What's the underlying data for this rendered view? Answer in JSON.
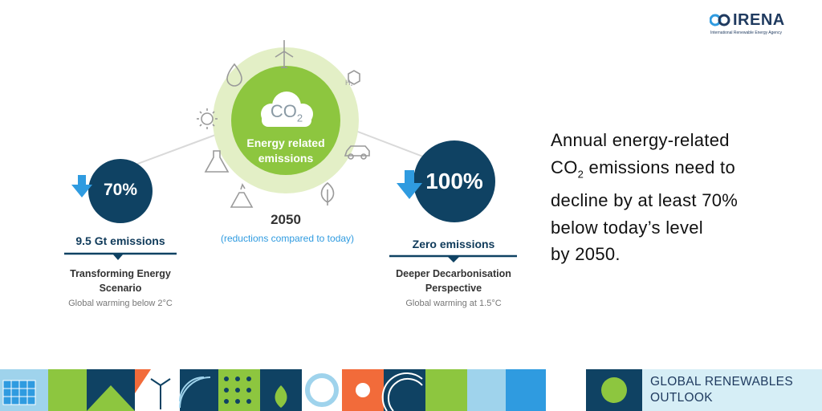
{
  "logo": {
    "name": "IRENA",
    "tagline": "International Renewable Energy Agency"
  },
  "center": {
    "co2_main": "CO",
    "co2_sub": "2",
    "label": "Energy related emissions",
    "year": "2050",
    "note": "(reductions compared to today)"
  },
  "left_scenario": {
    "percent": "70%",
    "emissions": "9.5 Gt emissions",
    "name": "Transforming Energy Scenario",
    "warming": "Global warming below 2°C"
  },
  "right_scenario": {
    "percent": "100%",
    "emissions": "Zero emissions",
    "name": "Deeper Decarbonisation Perspective",
    "warming": "Global warming at 1.5°C"
  },
  "headline": {
    "line1": "Annual energy-related",
    "line2_a": "CO",
    "line2_sub": "2",
    "line2_b": " emissions need to",
    "line3": "decline by at least 70%",
    "line4": "below today’s level",
    "line5": "by 2050."
  },
  "banner": {
    "title_line1": "GLOBAL RENEWABLES",
    "title_line2": "OUTLOOK"
  },
  "colors": {
    "navy": "#0f4263",
    "green": "#8dc63f",
    "light_green": "#e3efc6",
    "arrow_blue": "#2f9be0",
    "note_blue": "#2f9be0",
    "banner_bg": "#d6eef6"
  }
}
